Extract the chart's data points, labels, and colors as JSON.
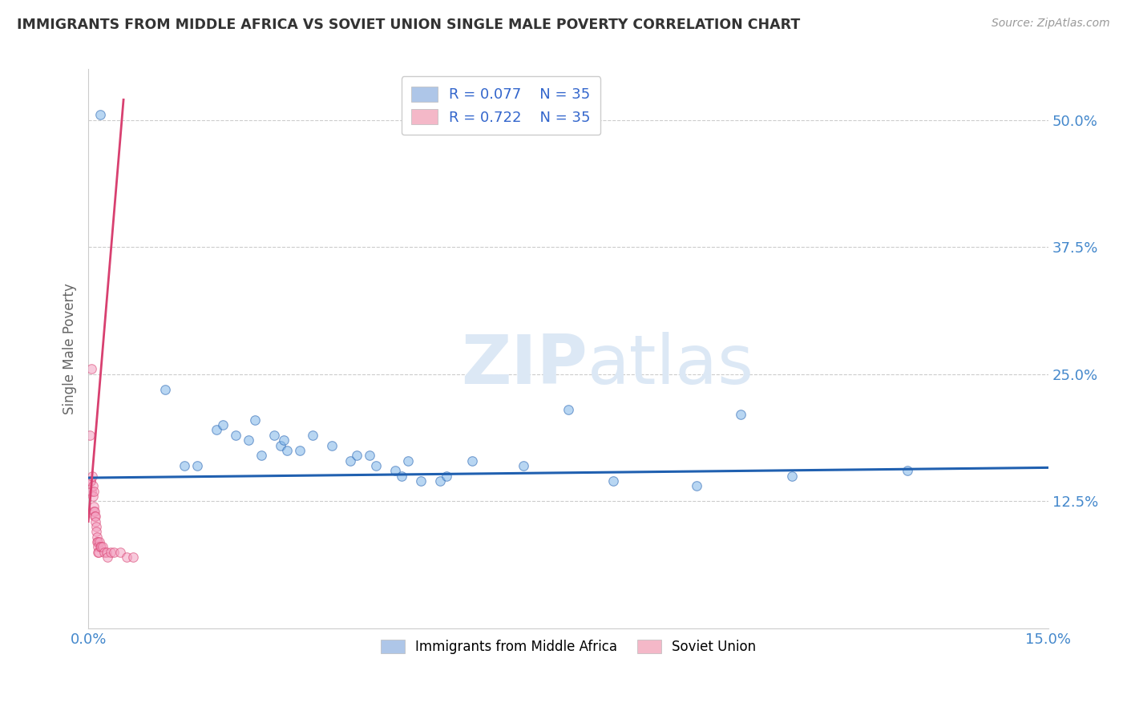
{
  "title": "IMMIGRANTS FROM MIDDLE AFRICA VS SOVIET UNION SINGLE MALE POVERTY CORRELATION CHART",
  "source": "Source: ZipAtlas.com",
  "ylabel": "Single Male Poverty",
  "x_min": 0.0,
  "x_max": 15.0,
  "y_min": 0.0,
  "y_max": 55.0,
  "x_tick_labels": [
    "0.0%",
    "15.0%"
  ],
  "y_tick_labels": [
    "12.5%",
    "25.0%",
    "37.5%",
    "50.0%"
  ],
  "y_ticks": [
    12.5,
    25.0,
    37.5,
    50.0
  ],
  "legend_entries": [
    {
      "label": "Immigrants from Middle Africa",
      "R": "0.077",
      "N": "35",
      "color": "#aec6e8"
    },
    {
      "label": "Soviet Union",
      "R": "0.722",
      "N": "35",
      "color": "#f4b8c8"
    }
  ],
  "watermark_part1": "ZIP",
  "watermark_part2": "atlas",
  "blue_scatter_x": [
    0.18,
    1.2,
    2.0,
    2.1,
    2.3,
    2.5,
    2.6,
    2.9,
    3.0,
    3.05,
    3.3,
    3.5,
    3.8,
    4.1,
    4.2,
    4.5,
    4.8,
    4.9,
    5.0,
    5.2,
    5.5,
    5.6,
    6.0,
    6.8,
    7.5,
    8.2,
    9.5,
    10.2,
    11.0,
    12.8,
    1.5,
    1.7,
    2.7,
    3.1,
    4.4
  ],
  "blue_scatter_y": [
    50.5,
    23.5,
    19.5,
    20.0,
    19.0,
    18.5,
    20.5,
    19.0,
    18.0,
    18.5,
    17.5,
    19.0,
    18.0,
    16.5,
    17.0,
    16.0,
    15.5,
    15.0,
    16.5,
    14.5,
    14.5,
    15.0,
    16.5,
    16.0,
    21.5,
    14.5,
    14.0,
    21.0,
    15.0,
    15.5,
    16.0,
    16.0,
    17.0,
    17.5,
    17.0
  ],
  "pink_scatter_x": [
    0.02,
    0.03,
    0.04,
    0.05,
    0.06,
    0.07,
    0.07,
    0.08,
    0.09,
    0.09,
    0.1,
    0.1,
    0.11,
    0.11,
    0.12,
    0.12,
    0.13,
    0.14,
    0.15,
    0.15,
    0.15,
    0.16,
    0.17,
    0.18,
    0.2,
    0.22,
    0.25,
    0.28,
    0.3,
    0.35,
    0.4,
    0.5,
    0.6,
    0.7,
    0.05
  ],
  "pink_scatter_y": [
    19.0,
    14.5,
    14.5,
    13.5,
    15.0,
    14.0,
    13.0,
    13.5,
    12.0,
    11.5,
    11.5,
    11.0,
    11.0,
    10.5,
    10.0,
    9.5,
    9.0,
    8.5,
    8.5,
    8.0,
    7.5,
    7.5,
    8.5,
    8.0,
    8.0,
    8.0,
    7.5,
    7.5,
    7.0,
    7.5,
    7.5,
    7.5,
    7.0,
    7.0,
    25.5
  ],
  "blue_line_x": [
    0.0,
    15.0
  ],
  "blue_line_y": [
    14.8,
    15.8
  ],
  "pink_line_x": [
    0.0,
    0.55
  ],
  "pink_line_y": [
    10.5,
    52.0
  ],
  "scatter_size": 70,
  "scatter_alpha": 0.55,
  "blue_scatter_color": "#7eb5e8",
  "pink_scatter_color": "#f4a0c0",
  "blue_line_color": "#2060b0",
  "pink_line_color": "#d84070",
  "grid_color": "#cccccc",
  "background_color": "#ffffff",
  "title_color": "#333333",
  "axis_label_color": "#666666",
  "tick_color": "#4488cc",
  "legend_R_color": "#3366cc",
  "watermark_color": "#dce8f5"
}
